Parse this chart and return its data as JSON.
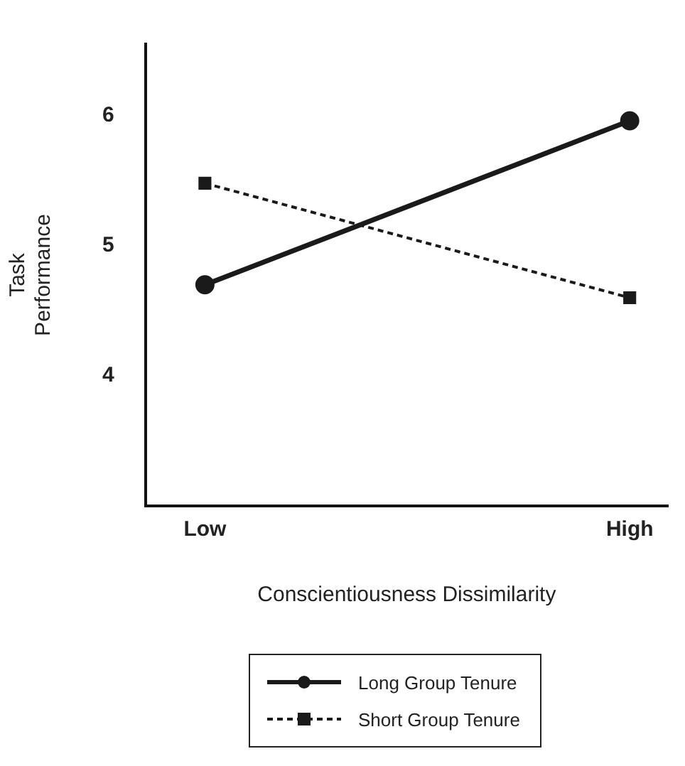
{
  "chart_data": {
    "type": "line",
    "xlabel": "Conscientiousness Dissimilarity",
    "ylabel": "Task Performance",
    "categories": [
      "Low",
      "High"
    ],
    "series": [
      {
        "name": "Long Group Tenure",
        "color": "#1a1a1a",
        "values": [
          4.7,
          5.96
        ],
        "marker": "circle",
        "line_style": "solid"
      },
      {
        "name": "Short Group Tenure",
        "color": "#1a1a1a",
        "values": [
          5.48,
          4.6
        ],
        "marker": "square",
        "line_style": "dashed"
      }
    ],
    "ylim": [
      3,
      6.55
    ],
    "yticks": [
      4,
      5,
      6
    ],
    "grid": false,
    "legend": "bottom"
  }
}
